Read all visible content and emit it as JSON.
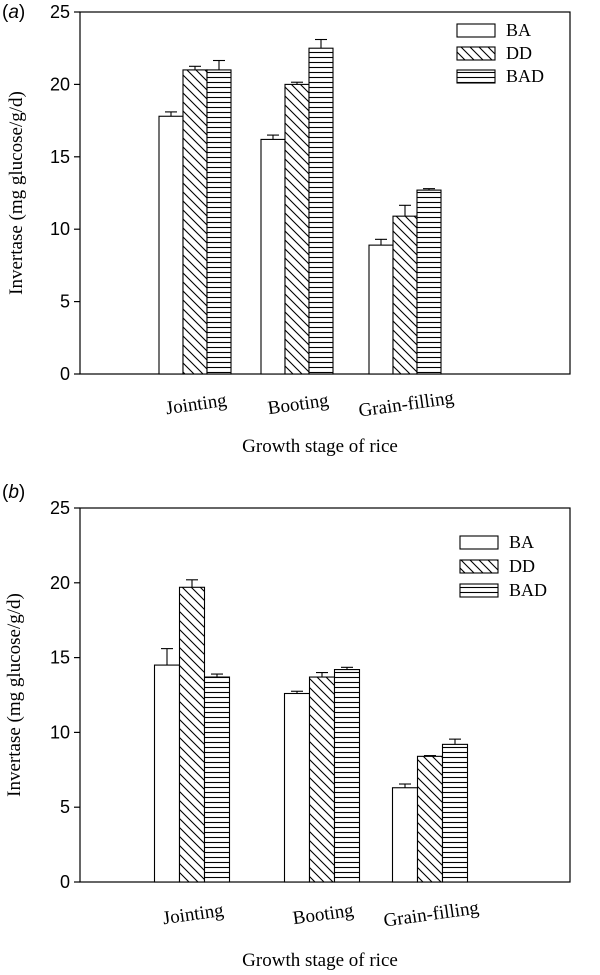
{
  "chart_data": [
    {
      "type": "bar",
      "panel": "(a)",
      "categories": [
        "Jointing",
        "Booting",
        "Grain-filling"
      ],
      "series": [
        {
          "name": "BA",
          "values": [
            17.8,
            16.2,
            8.9
          ],
          "errors": [
            0.3,
            0.3,
            0.4
          ],
          "pattern": "blank"
        },
        {
          "name": "DD",
          "values": [
            21.0,
            20.0,
            10.9
          ],
          "errors": [
            0.25,
            0.15,
            0.75
          ],
          "pattern": "diagonal"
        },
        {
          "name": "BAD",
          "values": [
            21.0,
            22.5,
            12.7
          ],
          "errors": [
            0.65,
            0.6,
            0.1
          ],
          "pattern": "horizontal"
        }
      ],
      "xlabel": "Growth stage of rice",
      "ylabel": "Invertase (mg glucose/g/d)",
      "ylim": [
        0,
        25
      ],
      "yticks": [
        0,
        5,
        10,
        15,
        20,
        25
      ],
      "legend": "top-right",
      "grid": false
    },
    {
      "type": "bar",
      "panel": "(b)",
      "categories": [
        "Jointing",
        "Booting",
        "Grain-filling"
      ],
      "series": [
        {
          "name": "BA",
          "values": [
            14.5,
            12.6,
            6.3
          ],
          "errors": [
            1.1,
            0.15,
            0.25
          ],
          "pattern": "blank"
        },
        {
          "name": "DD",
          "values": [
            19.7,
            13.7,
            8.4
          ],
          "errors": [
            0.5,
            0.3,
            0.05
          ],
          "pattern": "diagonal"
        },
        {
          "name": "BAD",
          "values": [
            13.7,
            14.2,
            9.2
          ],
          "errors": [
            0.2,
            0.15,
            0.35
          ],
          "pattern": "horizontal"
        }
      ],
      "xlabel": "Growth stage of rice",
      "ylabel": "Invertase (mg glucose/g/d)",
      "ylim": [
        0,
        25
      ],
      "yticks": [
        0,
        5,
        10,
        15,
        20,
        25
      ],
      "legend": "top-right",
      "grid": false
    }
  ]
}
